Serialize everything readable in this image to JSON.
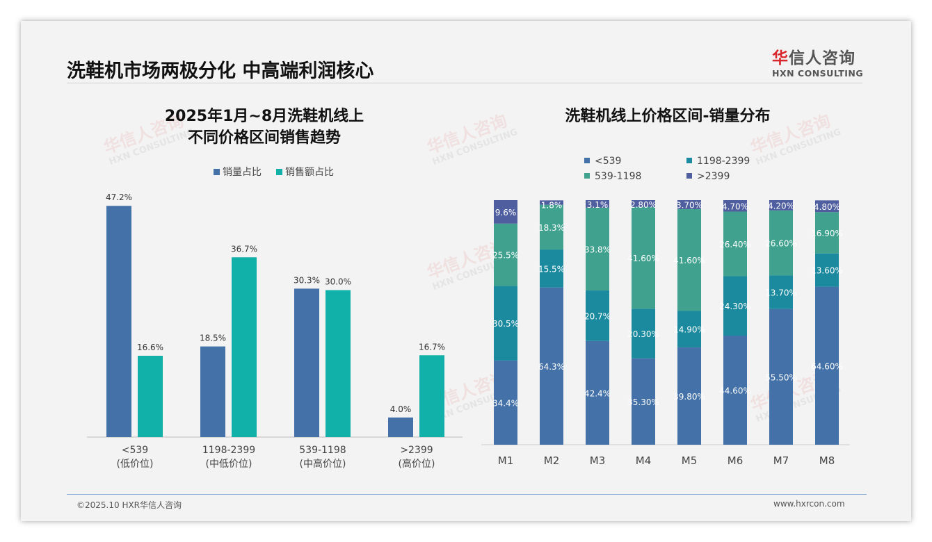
{
  "header": {
    "title": "洗鞋机市场两极分化 中高端利润核心",
    "logo_cn_first": "华",
    "logo_cn_rest": "信人咨询",
    "logo_en": "HXN CONSULTING"
  },
  "footer": {
    "copyright": "©2025.10 HXR华信人咨询",
    "url": "www.hxrcon.com"
  },
  "watermark": {
    "cn": "华信人咨询",
    "en": "HXN CONSULTING"
  },
  "chart_data": [
    {
      "type": "bar",
      "title_line1": "2025年1月~8月洗鞋机线上",
      "title_line2": "不同价格区间销售趋势",
      "categories": [
        "<539",
        "1198-2399",
        "539-1198",
        ">2399"
      ],
      "category_sublabels": [
        "(低价位)",
        "(中低价位)",
        "(中高价位)",
        "(高价位)"
      ],
      "series": [
        {
          "name": "销量占比",
          "color": "#4472a8",
          "values": [
            47.2,
            18.5,
            30.3,
            4.0
          ]
        },
        {
          "name": "销售额占比",
          "color": "#11b0a8",
          "values": [
            16.6,
            36.7,
            30.0,
            16.7
          ]
        }
      ],
      "ylim": [
        0,
        50
      ],
      "legend": "top",
      "grid": false
    },
    {
      "type": "bar",
      "stacked": true,
      "title": "洗鞋机线上价格区间-销量分布",
      "categories": [
        "M1",
        "M2",
        "M3",
        "M4",
        "M5",
        "M6",
        "M7",
        "M8"
      ],
      "series": [
        {
          "name": "<539",
          "color": "#4472a8",
          "values": [
            34.4,
            64.3,
            42.4,
            35.3,
            39.8,
            44.6,
            55.5,
            64.6
          ],
          "labels": [
            "34.4%",
            "64.3%",
            "42.4%",
            "35.30%",
            "39.80%",
            "44.60%",
            "55.50%",
            "64.60%"
          ]
        },
        {
          "name": "1198-2399",
          "color": "#1b8a9e",
          "values": [
            30.5,
            15.5,
            20.7,
            20.3,
            14.9,
            24.3,
            13.7,
            13.6
          ],
          "labels": [
            "30.5%",
            "15.5%",
            "20.7%",
            "20.30%",
            "14.90%",
            "24.30%",
            "13.70%",
            "13.60%"
          ]
        },
        {
          "name": "539-1198",
          "color": "#40a28e",
          "values": [
            25.5,
            18.3,
            33.8,
            41.6,
            41.6,
            26.4,
            26.6,
            16.9
          ],
          "labels": [
            "25.5%",
            "18.3%",
            "33.8%",
            "41.60%",
            "41.60%",
            "26.40%",
            "26.60%",
            "16.90%"
          ]
        },
        {
          "name": ">2399",
          "color": "#4e5e9f",
          "values": [
            9.6,
            1.8,
            3.1,
            2.8,
            3.7,
            4.7,
            4.2,
            4.8
          ],
          "labels": [
            "9.6%",
            "1.8%",
            "3.1%",
            "2.80%",
            "3.70%",
            "4.70%",
            "4.20%",
            "4.80%"
          ]
        }
      ],
      "ylim": [
        0,
        100
      ],
      "legend": "top-left",
      "grid": false
    }
  ]
}
